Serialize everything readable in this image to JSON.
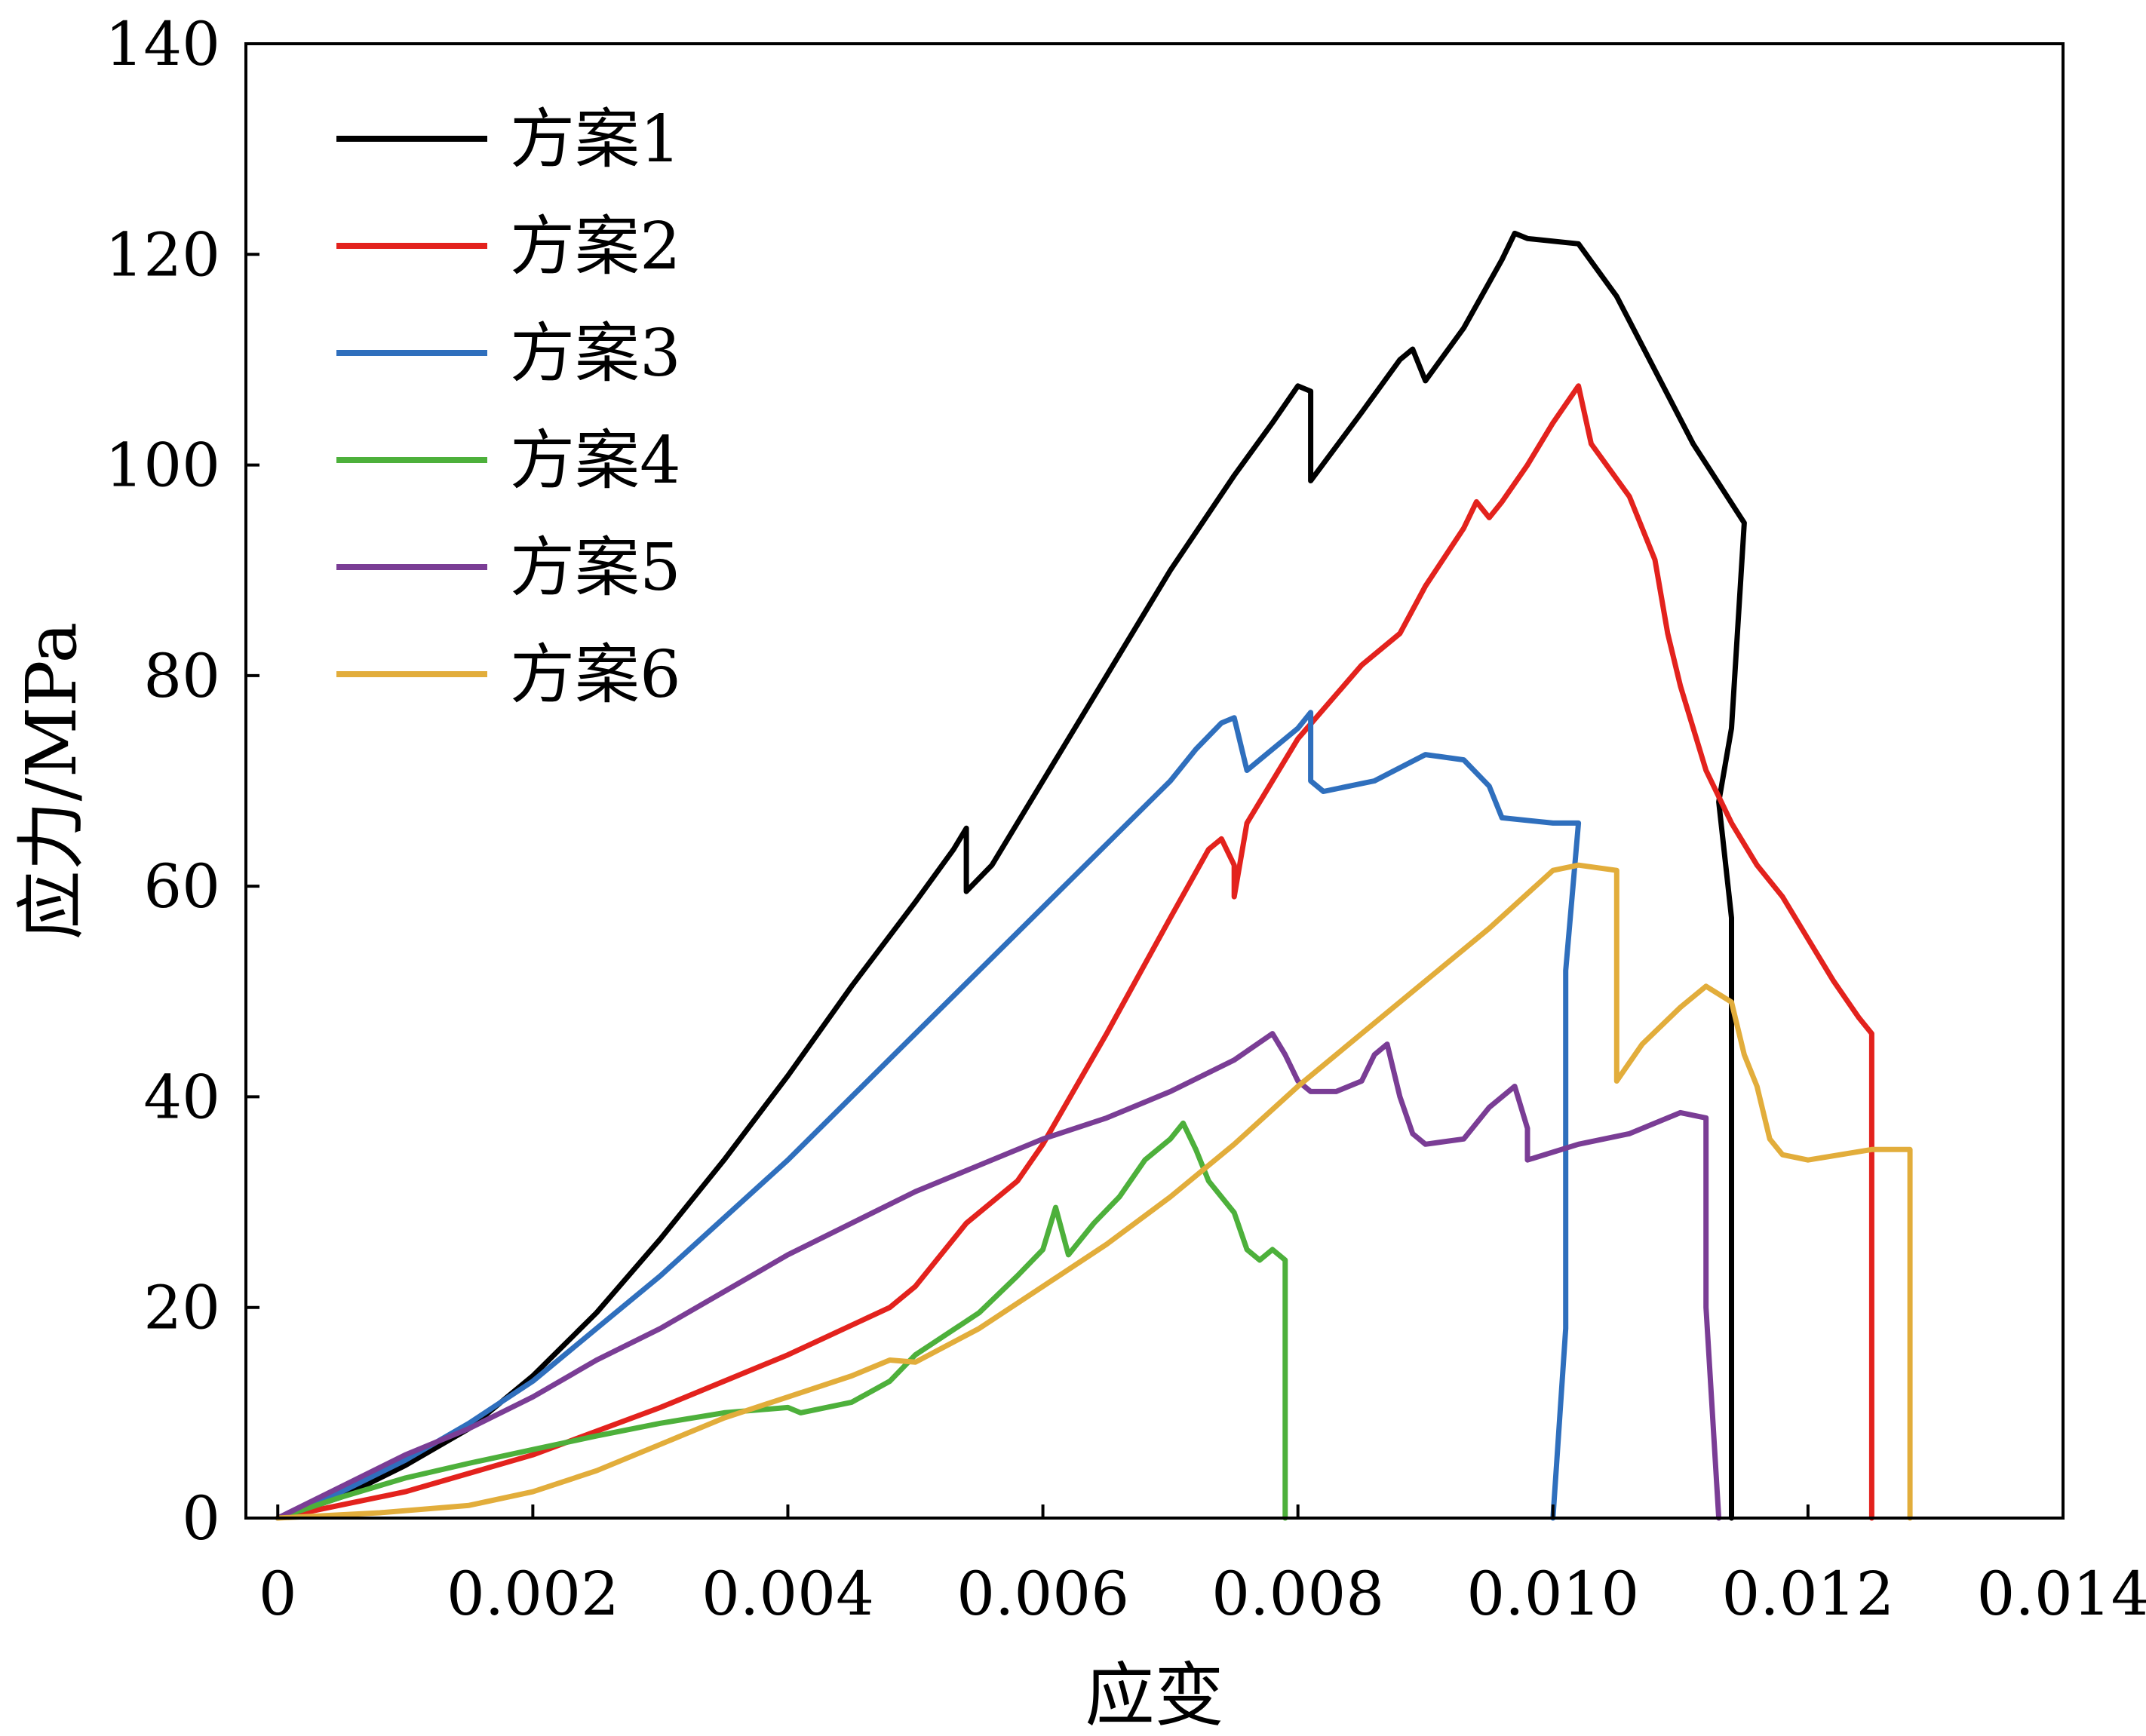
{
  "chart_data": {
    "type": "line",
    "xlabel": "应变",
    "ylabel": "应力/MPa",
    "xlim": [
      -0.00025,
      0.014
    ],
    "ylim": [
      0,
      140
    ],
    "xticks": [
      0,
      0.002,
      0.004,
      0.006,
      0.008,
      0.01,
      0.012,
      0.014
    ],
    "xtick_labels": [
      "0",
      "0.002",
      "0.004",
      "0.006",
      "0.008",
      "0.010",
      "0.012",
      "0.014"
    ],
    "yticks": [
      0,
      20,
      40,
      60,
      80,
      100,
      120,
      140
    ],
    "ytick_labels": [
      "0",
      "20",
      "40",
      "60",
      "80",
      "100",
      "120",
      "140"
    ],
    "grid": false,
    "legend_position": "top-left",
    "series": [
      {
        "name": "方案1",
        "color": "#000000",
        "points": [
          [
            0,
            0
          ],
          [
            0.0005,
            2
          ],
          [
            0.001,
            5
          ],
          [
            0.0015,
            8.5
          ],
          [
            0.002,
            13.5
          ],
          [
            0.0025,
            19.5
          ],
          [
            0.003,
            26.5
          ],
          [
            0.0035,
            34
          ],
          [
            0.004,
            42
          ],
          [
            0.0045,
            50.5
          ],
          [
            0.005,
            58.5
          ],
          [
            0.0053,
            63.5
          ],
          [
            0.0054,
            65.5
          ],
          [
            0.0054,
            59.5
          ],
          [
            0.0056,
            62
          ],
          [
            0.006,
            70
          ],
          [
            0.0065,
            80
          ],
          [
            0.007,
            90
          ],
          [
            0.0075,
            99
          ],
          [
            0.0078,
            104
          ],
          [
            0.008,
            107.5
          ],
          [
            0.0081,
            107
          ],
          [
            0.0081,
            98.5
          ],
          [
            0.0085,
            105
          ],
          [
            0.0088,
            110
          ],
          [
            0.0089,
            111
          ],
          [
            0.009,
            108
          ],
          [
            0.0093,
            113
          ],
          [
            0.0096,
            119.5
          ],
          [
            0.0097,
            122
          ],
          [
            0.0098,
            121.5
          ],
          [
            0.0102,
            121
          ],
          [
            0.0105,
            116
          ],
          [
            0.0108,
            109
          ],
          [
            0.0111,
            102
          ],
          [
            0.0115,
            94.5
          ],
          [
            0.0114,
            75
          ],
          [
            0.0113,
            68
          ],
          [
            0.0114,
            57
          ],
          [
            0.0114,
            0
          ]
        ]
      },
      {
        "name": "方案2",
        "color": "#e3221d",
        "points": [
          [
            0,
            0
          ],
          [
            0.001,
            2.5
          ],
          [
            0.002,
            6
          ],
          [
            0.003,
            10.5
          ],
          [
            0.004,
            15.5
          ],
          [
            0.0048,
            20
          ],
          [
            0.005,
            22
          ],
          [
            0.0054,
            28
          ],
          [
            0.0058,
            32
          ],
          [
            0.006,
            35.5
          ],
          [
            0.0065,
            46
          ],
          [
            0.007,
            57
          ],
          [
            0.0073,
            63.5
          ],
          [
            0.0074,
            64.5
          ],
          [
            0.0075,
            62
          ],
          [
            0.0075,
            59
          ],
          [
            0.0076,
            66
          ],
          [
            0.008,
            74
          ],
          [
            0.0085,
            81
          ],
          [
            0.0088,
            84
          ],
          [
            0.009,
            88.5
          ],
          [
            0.0093,
            94
          ],
          [
            0.0094,
            96.5
          ],
          [
            0.0095,
            95
          ],
          [
            0.0096,
            96.5
          ],
          [
            0.0098,
            100
          ],
          [
            0.01,
            104
          ],
          [
            0.0102,
            107.5
          ],
          [
            0.0103,
            102
          ],
          [
            0.0106,
            97
          ],
          [
            0.0108,
            91
          ],
          [
            0.0109,
            84
          ],
          [
            0.011,
            79
          ],
          [
            0.0112,
            71
          ],
          [
            0.0114,
            66
          ],
          [
            0.0116,
            62
          ],
          [
            0.0118,
            59
          ],
          [
            0.012,
            55
          ],
          [
            0.0122,
            51
          ],
          [
            0.0124,
            47.5
          ],
          [
            0.0125,
            46
          ],
          [
            0.0125,
            0
          ]
        ]
      },
      {
        "name": "方案3",
        "color": "#2f6fbd",
        "points": [
          [
            0,
            0
          ],
          [
            0.0005,
            2.5
          ],
          [
            0.001,
            5.5
          ],
          [
            0.0015,
            9
          ],
          [
            0.002,
            13
          ],
          [
            0.0025,
            18
          ],
          [
            0.003,
            23
          ],
          [
            0.0035,
            28.5
          ],
          [
            0.004,
            34
          ],
          [
            0.0045,
            40
          ],
          [
            0.005,
            46
          ],
          [
            0.0055,
            52
          ],
          [
            0.006,
            58
          ],
          [
            0.0065,
            64
          ],
          [
            0.007,
            70
          ],
          [
            0.0072,
            73
          ],
          [
            0.0074,
            75.5
          ],
          [
            0.0075,
            76
          ],
          [
            0.0076,
            71
          ],
          [
            0.0078,
            73
          ],
          [
            0.008,
            75
          ],
          [
            0.0081,
            76.5
          ],
          [
            0.0081,
            70
          ],
          [
            0.0082,
            69
          ],
          [
            0.0086,
            70
          ],
          [
            0.009,
            72.5
          ],
          [
            0.0093,
            72
          ],
          [
            0.0095,
            69.5
          ],
          [
            0.0096,
            66.5
          ],
          [
            0.01,
            66
          ],
          [
            0.0102,
            66
          ],
          [
            0.0101,
            52
          ],
          [
            0.0101,
            18
          ],
          [
            0.01,
            0
          ]
        ]
      },
      {
        "name": "方案4",
        "color": "#4db03b",
        "points": [
          [
            0,
            0
          ],
          [
            0.0005,
            2
          ],
          [
            0.001,
            3.8
          ],
          [
            0.0015,
            5.2
          ],
          [
            0.002,
            6.5
          ],
          [
            0.0025,
            7.8
          ],
          [
            0.003,
            9
          ],
          [
            0.0035,
            10
          ],
          [
            0.004,
            10.5
          ],
          [
            0.0041,
            10
          ],
          [
            0.0045,
            11
          ],
          [
            0.0048,
            13
          ],
          [
            0.005,
            15.5
          ],
          [
            0.0055,
            19.5
          ],
          [
            0.0058,
            23
          ],
          [
            0.006,
            25.5
          ],
          [
            0.0061,
            29.5
          ],
          [
            0.0062,
            25
          ],
          [
            0.0064,
            28
          ],
          [
            0.0066,
            30.5
          ],
          [
            0.0068,
            34
          ],
          [
            0.007,
            36
          ],
          [
            0.0071,
            37.5
          ],
          [
            0.0072,
            35
          ],
          [
            0.0073,
            32
          ],
          [
            0.0075,
            29
          ],
          [
            0.0076,
            25.5
          ],
          [
            0.0077,
            24.5
          ],
          [
            0.0078,
            25.5
          ],
          [
            0.0079,
            24.5
          ],
          [
            0.0079,
            18
          ],
          [
            0.0079,
            0
          ]
        ]
      },
      {
        "name": "方案5",
        "color": "#7a3d95",
        "points": [
          [
            0,
            0
          ],
          [
            0.0005,
            3
          ],
          [
            0.001,
            6
          ],
          [
            0.0015,
            8.5
          ],
          [
            0.002,
            11.5
          ],
          [
            0.0025,
            15
          ],
          [
            0.003,
            18
          ],
          [
            0.0035,
            21.5
          ],
          [
            0.004,
            25
          ],
          [
            0.0045,
            28
          ],
          [
            0.005,
            31
          ],
          [
            0.0055,
            33.5
          ],
          [
            0.006,
            36
          ],
          [
            0.0065,
            38
          ],
          [
            0.007,
            40.5
          ],
          [
            0.0075,
            43.5
          ],
          [
            0.0078,
            46
          ],
          [
            0.0079,
            44
          ],
          [
            0.008,
            41.5
          ],
          [
            0.0081,
            40.5
          ],
          [
            0.0083,
            40.5
          ],
          [
            0.0085,
            41.5
          ],
          [
            0.0086,
            44
          ],
          [
            0.0087,
            45
          ],
          [
            0.0088,
            40
          ],
          [
            0.0089,
            36.5
          ],
          [
            0.009,
            35.5
          ],
          [
            0.0093,
            36
          ],
          [
            0.0095,
            39
          ],
          [
            0.0097,
            41
          ],
          [
            0.0098,
            37
          ],
          [
            0.0098,
            34
          ],
          [
            0.0102,
            35.5
          ],
          [
            0.0106,
            36.5
          ],
          [
            0.011,
            38.5
          ],
          [
            0.0112,
            38
          ],
          [
            0.0112,
            20
          ],
          [
            0.0113,
            0
          ]
        ]
      },
      {
        "name": "方案6",
        "color": "#e2ad3b",
        "points": [
          [
            0,
            0
          ],
          [
            0.0008,
            0.5
          ],
          [
            0.0015,
            1.2
          ],
          [
            0.002,
            2.5
          ],
          [
            0.0025,
            4.5
          ],
          [
            0.003,
            7
          ],
          [
            0.0035,
            9.5
          ],
          [
            0.004,
            11.5
          ],
          [
            0.0045,
            13.5
          ],
          [
            0.0048,
            15
          ],
          [
            0.005,
            14.8
          ],
          [
            0.0055,
            18
          ],
          [
            0.006,
            22
          ],
          [
            0.0065,
            26
          ],
          [
            0.007,
            30.5
          ],
          [
            0.0075,
            35.5
          ],
          [
            0.008,
            41
          ],
          [
            0.0085,
            46
          ],
          [
            0.009,
            51
          ],
          [
            0.0095,
            56
          ],
          [
            0.01,
            61.5
          ],
          [
            0.0102,
            62
          ],
          [
            0.0105,
            61.5
          ],
          [
            0.0105,
            41.5
          ],
          [
            0.0107,
            45
          ],
          [
            0.011,
            48.5
          ],
          [
            0.0112,
            50.5
          ],
          [
            0.0114,
            49
          ],
          [
            0.0115,
            44
          ],
          [
            0.0116,
            41
          ],
          [
            0.0117,
            36
          ],
          [
            0.0118,
            34.5
          ],
          [
            0.012,
            34
          ],
          [
            0.0125,
            35
          ],
          [
            0.0128,
            35
          ],
          [
            0.0128,
            0
          ]
        ]
      }
    ]
  }
}
